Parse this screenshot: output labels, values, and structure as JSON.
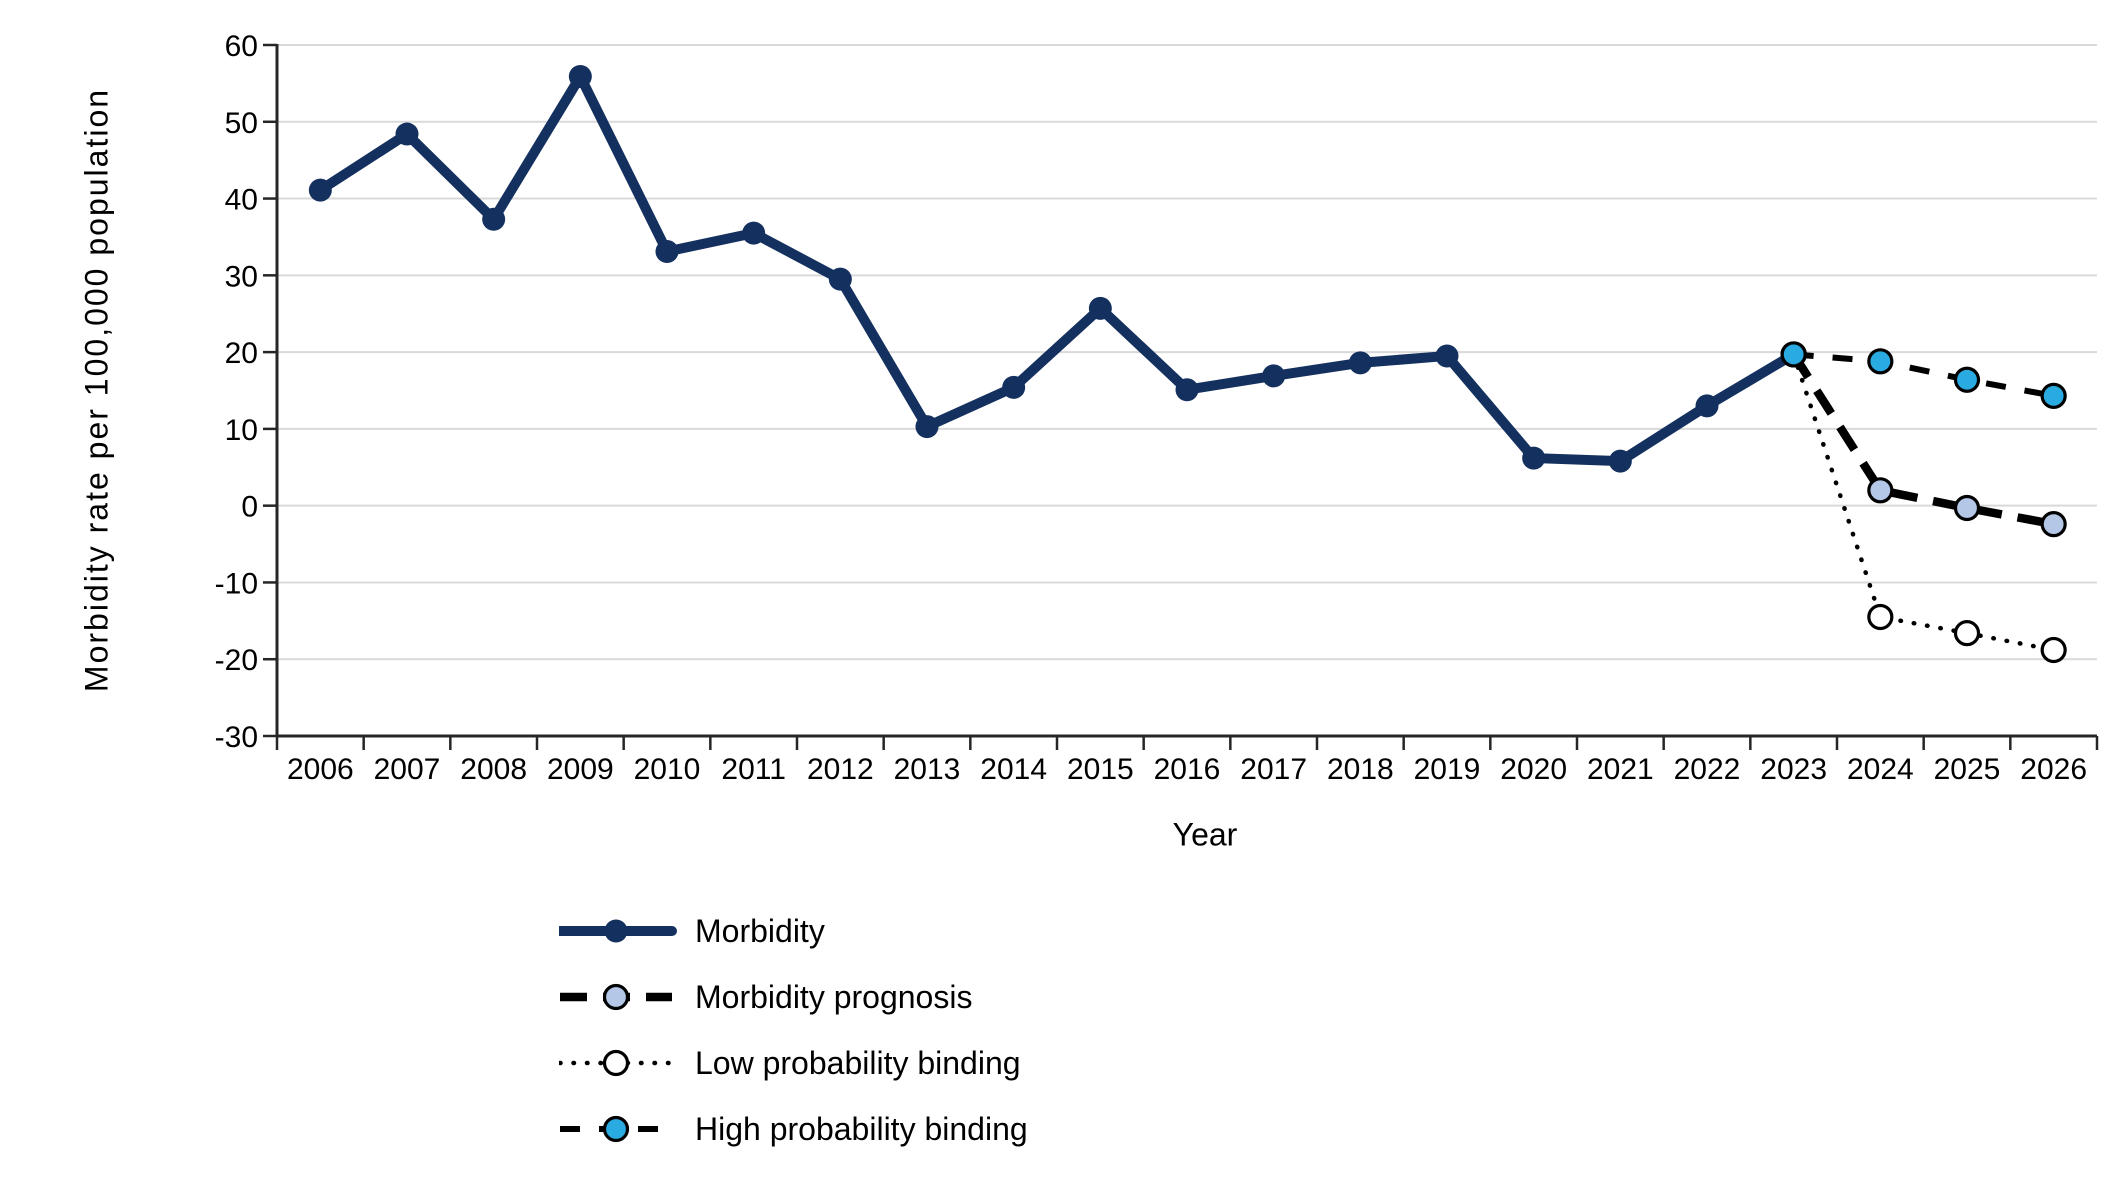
{
  "chart_data": {
    "type": "line",
    "title": "",
    "xlabel": "Year",
    "ylabel": "Morbidity rate per 100,000 population",
    "ylim": [
      -30,
      60
    ],
    "yticks": [
      60,
      50,
      40,
      30,
      20,
      10,
      0,
      -10,
      -20,
      -30
    ],
    "categories": [
      2006,
      2007,
      2008,
      2009,
      2010,
      2011,
      2012,
      2013,
      2014,
      2015,
      2016,
      2017,
      2018,
      2019,
      2020,
      2021,
      2022,
      2023,
      2024,
      2025,
      2026
    ],
    "grid": "horizontal",
    "legend_position": "bottom-left",
    "background_color": "#FFFFFF",
    "gridline_color": "#D9D9D9",
    "axis_color": "#262626",
    "text_color": "#000000",
    "series": [
      {
        "name": "Morbidity",
        "line_style": "solid",
        "line_color": "#14305F",
        "line_width": 10,
        "marker_fill": "#14305F",
        "marker_stroke": "#14305F",
        "marker_stroke_width": 0,
        "marker_radius": 11.5,
        "x": [
          2006,
          2007,
          2008,
          2009,
          2010,
          2011,
          2012,
          2013,
          2014,
          2015,
          2016,
          2017,
          2018,
          2019,
          2020,
          2021,
          2022,
          2023
        ],
        "values": [
          41.1,
          48.4,
          37.3,
          55.9,
          33.1,
          35.5,
          29.5,
          10.3,
          15.4,
          25.7,
          15.1,
          16.9,
          18.6,
          19.5,
          6.2,
          5.8,
          13.0,
          19.7
        ]
      },
      {
        "name": "Morbidity prognosis",
        "line_style": "dash-bold",
        "line_color": "#000000",
        "line_width": 8.5,
        "marker_fill": "#B4C7E7",
        "marker_stroke": "#000000",
        "marker_stroke_width": 3.2,
        "marker_radius": 11.5,
        "x": [
          2023,
          2024,
          2025,
          2026
        ],
        "values": [
          19.7,
          2.0,
          -0.3,
          -2.4
        ]
      },
      {
        "name": "Low probability binding",
        "line_style": "dot",
        "line_color": "#000000",
        "line_width": 4.5,
        "marker_fill": "#FFFFFF",
        "marker_stroke": "#000000",
        "marker_stroke_width": 3.2,
        "marker_radius": 11.5,
        "x": [
          2023,
          2024,
          2025,
          2026
        ],
        "values": [
          19.7,
          -14.5,
          -16.6,
          -18.8
        ]
      },
      {
        "name": "High probability binding",
        "line_style": "dash",
        "line_color": "#000000",
        "line_width": 6,
        "marker_fill": "#29ABE2",
        "marker_stroke": "#000000",
        "marker_stroke_width": 3.2,
        "marker_radius": 11.5,
        "x": [
          2023,
          2024,
          2025,
          2026
        ],
        "values": [
          19.7,
          18.8,
          16.4,
          14.3
        ]
      }
    ]
  }
}
